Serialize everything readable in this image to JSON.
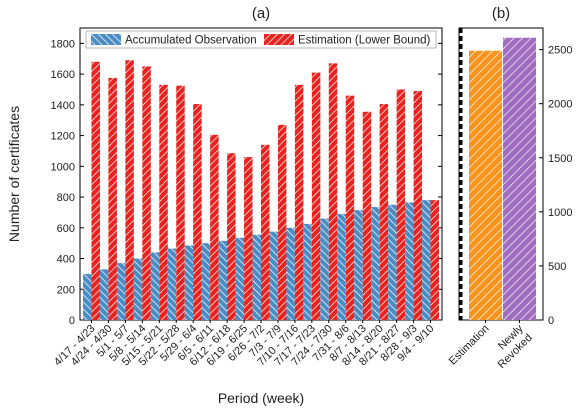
{
  "chart_data": [
    {
      "panel": "(a)",
      "type": "bar",
      "title": "(a)",
      "xlabel": "Period (week)",
      "ylabel": "Number of certificates",
      "ylim": [
        0,
        1900
      ],
      "yticks": [
        0,
        200,
        400,
        600,
        800,
        1000,
        1200,
        1400,
        1600,
        1800
      ],
      "legend_position": "top",
      "categories": [
        "4/17 - 4/23",
        "4/24 - 4/30",
        "5/1 - 5/7",
        "5/8 - 5/14",
        "5/15 - 5/21",
        "5/22 - 5/28",
        "5/29 - 6/4",
        "6/5 - 6/11",
        "6/12 - 6/18",
        "6/19 - 6/25",
        "6/26 - 7/2",
        "7/3 - 7/9",
        "7/10 - 7/16",
        "7/17 - 7/23",
        "7/24 - 7/30",
        "7/31 - 8/6",
        "8/7 - 8/13",
        "8/14 - 8/20",
        "8/21 - 8/27",
        "8/28 - 9/3",
        "9/4 - 9/10"
      ],
      "series": [
        {
          "name": "Accumulated Observation",
          "color": "#4a8cc4",
          "values": [
            300,
            330,
            370,
            400,
            440,
            465,
            485,
            500,
            515,
            535,
            555,
            575,
            600,
            625,
            660,
            690,
            715,
            735,
            750,
            765,
            780
          ]
        },
        {
          "name": "Estimation (Lower Bound)",
          "color": "#e8221e",
          "values": [
            1680,
            1575,
            1690,
            1650,
            1530,
            1525,
            1405,
            1205,
            1085,
            1060,
            1140,
            1270,
            1530,
            1610,
            1670,
            1460,
            1355,
            1405,
            1500,
            1490,
            780
          ]
        }
      ]
    },
    {
      "panel": "(b)",
      "type": "bar",
      "title": "(b)",
      "ylim": [
        0,
        2700
      ],
      "yticks": [
        0,
        500,
        1000,
        1500,
        2000,
        2500
      ],
      "y_axis_side": "right",
      "categories": [
        "Estimation",
        "Newly Revoked"
      ],
      "series": [
        {
          "name": "",
          "color": "#f7941d",
          "values": [
            2490,
            2610
          ]
        },
        {
          "name": "",
          "color": "#a06cc0",
          "values": [
            2490,
            2610
          ]
        }
      ],
      "bar_colors": [
        "#f7941d",
        "#a06cc0"
      ]
    }
  ]
}
